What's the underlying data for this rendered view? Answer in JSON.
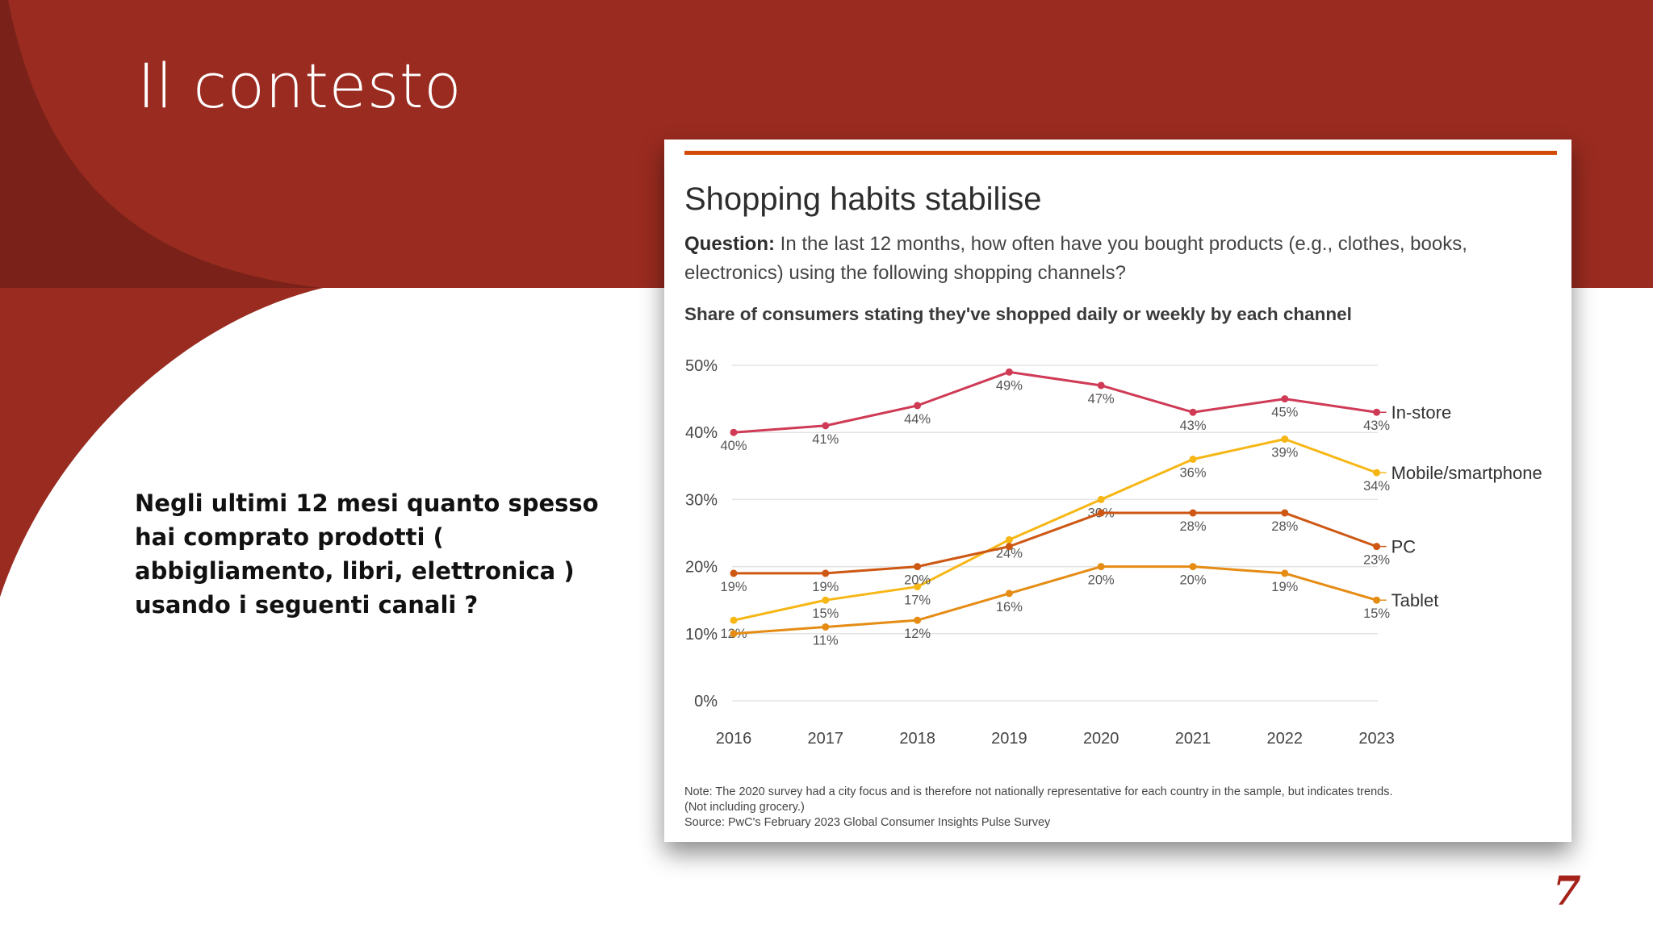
{
  "slide": {
    "title": "Il contesto",
    "body_text": "Negli ultimi 12 mesi quanto spesso hai comprato prodotti ( abbigliamento, libri, elettronica ) usando i seguenti canali ?",
    "page_number": "7",
    "colors": {
      "primary_red": "#9a2b20",
      "dark_red": "#7a2219",
      "accent_orange": "#d14a07"
    }
  },
  "chart": {
    "title": "Shopping habits stabilise",
    "question_label": "Question:",
    "question_text": "In the last 12 months, how often have you bought products (e.g., clothes, books, electronics) using the following shopping channels?",
    "subtitle": "Share of consumers stating they've shopped daily or weekly by each channel",
    "note_1": "Note: The 2020 survey had a city focus and is therefore not nationally representative for each country in the sample, but indicates trends.",
    "note_2": "(Not including grocery.)",
    "source": "Source: PwC's February 2023 Global Consumer Insights Pulse Survey"
  },
  "chart_data": {
    "type": "line",
    "title": "Shopping habits stabilise",
    "subtitle": "Share of consumers stating they've shopped daily or weekly by each channel",
    "x": [
      "2016",
      "2017",
      "2018",
      "2019",
      "2020",
      "2021",
      "2022",
      "2023"
    ],
    "y_ticks": [
      "0%",
      "10%",
      "20%",
      "30%",
      "40%",
      "50%"
    ],
    "ylim": [
      0,
      50
    ],
    "xlabel": "",
    "ylabel": "",
    "grid": true,
    "series": [
      {
        "name": "In-store",
        "color": "#cf3a55",
        "values": [
          40,
          41,
          44,
          49,
          47,
          43,
          45,
          43
        ],
        "labels": [
          "40%",
          "41%",
          "44%",
          "49%",
          "47%",
          "43%",
          "45%",
          "43%"
        ],
        "label_pos": [
          "below",
          "below",
          "below",
          "below",
          "below",
          "below",
          "below",
          "below"
        ]
      },
      {
        "name": "Mobile/smartphone",
        "color": "#f6b716",
        "values": [
          12,
          15,
          17,
          24,
          30,
          36,
          39,
          34
        ],
        "labels": [
          "12%",
          "15%",
          "17%",
          "24%",
          "30%",
          "36%",
          "39%",
          "34%"
        ],
        "label_pos": [
          "below",
          "below",
          "below",
          "below",
          "below",
          "below",
          "below",
          "below"
        ]
      },
      {
        "name": "PC",
        "color": "#cd5713",
        "values": [
          19,
          19,
          20,
          23,
          28,
          28,
          28,
          23
        ],
        "labels": [
          "19%",
          "19%",
          "20%",
          "",
          "",
          "28%",
          "28%",
          "23%"
        ],
        "label_pos": [
          "below",
          "below",
          "below",
          "none",
          "none",
          "below",
          "below",
          "below"
        ]
      },
      {
        "name": "Tablet",
        "color": "#e58c14",
        "values": [
          10,
          11,
          12,
          16,
          20,
          20,
          19,
          15
        ],
        "labels": [
          "",
          "11%",
          "12%",
          "16%",
          "20%",
          "20%",
          "19%",
          "15%"
        ],
        "label_pos": [
          "none",
          "below",
          "below",
          "below",
          "below",
          "below",
          "below",
          "below"
        ]
      }
    ]
  }
}
